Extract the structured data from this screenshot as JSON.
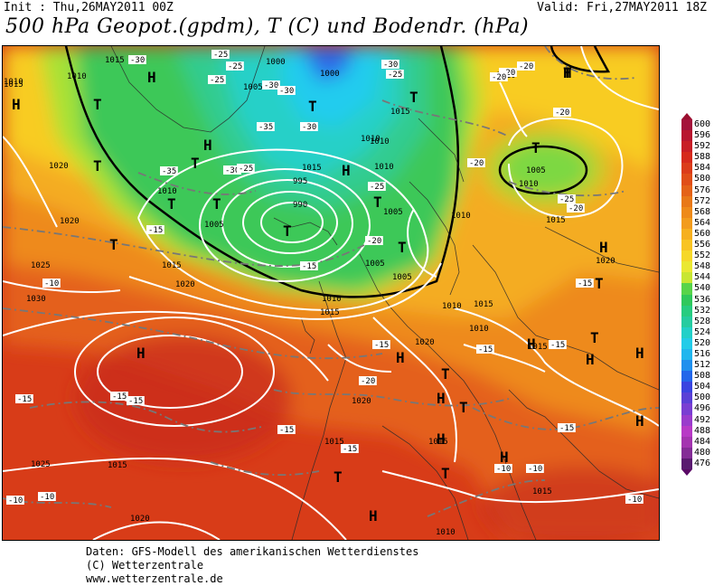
{
  "header": {
    "init": "Init : Thu,26MAY2011 00Z",
    "valid": "Valid: Fri,27MAY2011 18Z",
    "title": "500 hPa Geopot.(gpdm), T (C) und Bodendr. (hPa)"
  },
  "legend": {
    "labels": [
      "600",
      "596",
      "592",
      "588",
      "584",
      "580",
      "576",
      "572",
      "568",
      "564",
      "560",
      "556",
      "552",
      "548",
      "544",
      "540",
      "536",
      "532",
      "528",
      "524",
      "520",
      "516",
      "512",
      "508",
      "504",
      "500",
      "496",
      "492",
      "488",
      "484",
      "480",
      "476"
    ],
    "colors": [
      "#a4123b",
      "#b8162f",
      "#c81e26",
      "#d62a1c",
      "#db3c1a",
      "#e04e18",
      "#e46218",
      "#e87818",
      "#ee8a1a",
      "#f29c1e",
      "#f6b020",
      "#f8c424",
      "#f6d82a",
      "#eae832",
      "#c8e632",
      "#58d44a",
      "#30c85c",
      "#28cc80",
      "#26cca0",
      "#22d0c8",
      "#22cce8",
      "#20b6ee",
      "#2090ee",
      "#2266ea",
      "#3a44e0",
      "#5a40d6",
      "#7a3ed2",
      "#9a3ccc",
      "#b83ac6",
      "#a434b0",
      "#842c96",
      "#5a1a70"
    ]
  },
  "map": {
    "highs": [
      "H",
      "H",
      "H",
      "H",
      "H",
      "H",
      "H",
      "H",
      "H",
      "H",
      "H",
      "H",
      "H",
      "H",
      "H",
      "H"
    ],
    "lows": [
      "T",
      "T",
      "T",
      "T",
      "T",
      "T",
      "T",
      "T",
      "T",
      "T",
      "T",
      "T",
      "T",
      "T",
      "T",
      "T",
      "T",
      "T",
      "T"
    ],
    "isobars": [
      "1015",
      "1010",
      "1005",
      "1000",
      "995",
      "990",
      "1020",
      "1025",
      "1030",
      "1015",
      "1010",
      "1005",
      "1020",
      "1015",
      "1010",
      "1005",
      "1000",
      "1010",
      "1015",
      "1020",
      "1025",
      "1015",
      "1020",
      "1015",
      "1010",
      "1015",
      "1020",
      "1010",
      "1015",
      "1010",
      "1015",
      "1010",
      "1005",
      "1010",
      "1015",
      "1020",
      "1015",
      "1010",
      "1015",
      "1005",
      "1010",
      "1005",
      "1020",
      "1010",
      "1015",
      "1010"
    ],
    "temps": [
      "-30",
      "-25",
      "-30",
      "-25",
      "-30",
      "-35",
      "-30",
      "-30",
      "-25",
      "-35",
      "-30",
      "-25",
      "-20",
      "-25",
      "-20",
      "-15",
      "-15",
      "-10",
      "-10",
      "-15",
      "-15",
      "-20",
      "-15",
      "-15",
      "-15",
      "-10",
      "-10",
      "-15",
      "-20",
      "-25",
      "-20",
      "-10",
      "-15",
      "-15",
      "-10",
      "-20",
      "-25",
      "-20",
      "-15",
      "-20",
      "-15"
    ]
  },
  "footer": {
    "line1": "Daten: GFS-Modell des amerikanischen Wetterdienstes",
    "line2": "(C) Wetterzentrale",
    "line3": "www.wetterzentrale.de"
  }
}
